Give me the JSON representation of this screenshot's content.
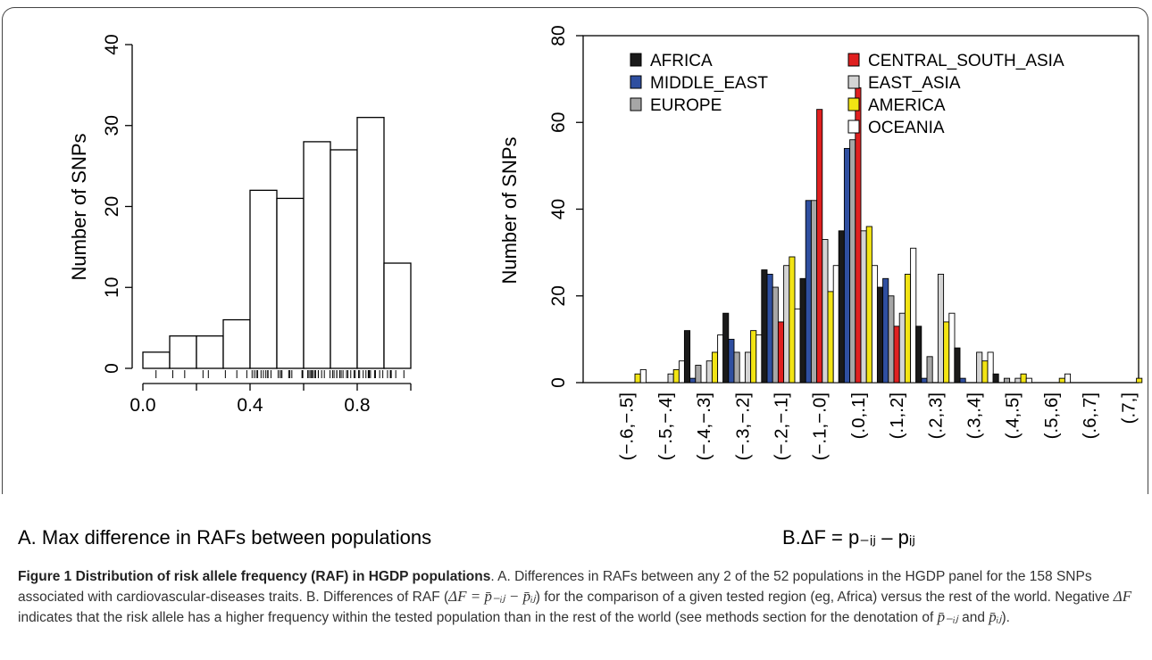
{
  "chart_data": [
    {
      "type": "bar",
      "panel": "A",
      "subtitle": "A. Max difference in RAFs between populations",
      "ylabel": "Number of SNPs",
      "xlabel": "",
      "xlim": [
        0.0,
        1.0
      ],
      "ylim": [
        0,
        40
      ],
      "x_ticks": [
        "0.0",
        "0.4",
        "0.8"
      ],
      "x_tick_values": [
        0.0,
        0.4,
        0.8
      ],
      "y_ticks": [
        "0",
        "10",
        "20",
        "30",
        "40"
      ],
      "y_tick_values": [
        0,
        10,
        20,
        30,
        40
      ],
      "bin_edges": [
        0.0,
        0.1,
        0.2,
        0.3,
        0.4,
        0.5,
        0.6,
        0.7,
        0.8,
        0.9,
        1.0
      ],
      "counts": [
        2,
        4,
        4,
        6,
        22,
        21,
        28,
        27,
        31,
        13
      ],
      "grid": false,
      "rug": true
    },
    {
      "type": "bar",
      "panel": "B",
      "subtitle": "B.ΔF = p₋ᵢⱼ – pᵢⱼ",
      "ylabel": "Number of SNPs",
      "xlabel": "",
      "ylim": [
        0,
        80
      ],
      "y_ticks": [
        "0",
        "20",
        "40",
        "60",
        "80"
      ],
      "y_tick_values": [
        0,
        20,
        40,
        60,
        80
      ],
      "categories": [
        "(−.6,−.5]",
        "(−.5,−.4]",
        "(−.4,−.3]",
        "(−.3,−.2]",
        "(−.2,−.1]",
        "(−.1,−.0]",
        "(.0,.1]",
        "(.1,.2]",
        "(.2,.3]",
        "(.3,.4]",
        "(.4,.5]",
        "(.5,.6]",
        "(.6,.7]",
        "(.7,]"
      ],
      "legend_position": "top",
      "grid": false,
      "series": [
        {
          "name": "AFRICA",
          "color": "#1a1a1a",
          "values": [
            0,
            0,
            12,
            16,
            26,
            24,
            35,
            22,
            13,
            8,
            2,
            0,
            0,
            0
          ]
        },
        {
          "name": "MIDDLE_EAST",
          "color": "#2f4fa0",
          "values": [
            0,
            0,
            1,
            10,
            25,
            42,
            54,
            24,
            1,
            1,
            0,
            0,
            0,
            0
          ]
        },
        {
          "name": "EUROPE",
          "color": "#a6a6a6",
          "values": [
            0,
            0,
            4,
            7,
            22,
            42,
            56,
            20,
            6,
            0,
            1,
            0,
            0,
            0
          ]
        },
        {
          "name": "CENTRAL_SOUTH_ASIA",
          "color": "#e02020",
          "values": [
            0,
            0,
            0,
            0,
            14,
            63,
            68,
            13,
            0,
            0,
            0,
            0,
            0,
            0
          ]
        },
        {
          "name": "EAST_ASIA",
          "color": "#d4d4d4",
          "values": [
            0,
            2,
            5,
            7,
            27,
            33,
            35,
            16,
            25,
            7,
            1,
            0,
            0,
            0
          ]
        },
        {
          "name": "AMERICA",
          "color": "#f2e414",
          "values": [
            2,
            3,
            7,
            12,
            29,
            21,
            36,
            25,
            14,
            5,
            2,
            1,
            0,
            1
          ]
        },
        {
          "name": "OCEANIA",
          "color": "#ffffff",
          "values": [
            3,
            5,
            11,
            11,
            17,
            27,
            27,
            31,
            16,
            7,
            1,
            2,
            0,
            0
          ]
        }
      ]
    }
  ],
  "caption": {
    "label": "Figure 1 Distribution of risk allele frequency (RAF) in HGDP populations",
    "text_1": ". A. Differences in RAFs between any 2 of the 52 populations in the HGDP panel for the 158 SNPs associated with cardiovascular-diseases traits. B. Differences of RAF (",
    "formula_1": "ΔF = p̄₋ᵢⱼ − p̄ᵢⱼ",
    "text_2": ") for the comparison of a given tested region (eg, Africa) versus the rest of the world. Negative ",
    "formula_2": "ΔF",
    "text_3": " indicates that the risk allele has a higher frequency within the tested population than in the rest of the world (see methods section for the denotation of ",
    "formula_3": "p̄₋ᵢⱼ",
    "text_4": " and ",
    "formula_4": "p̄ᵢⱼ",
    "text_5": ")."
  }
}
